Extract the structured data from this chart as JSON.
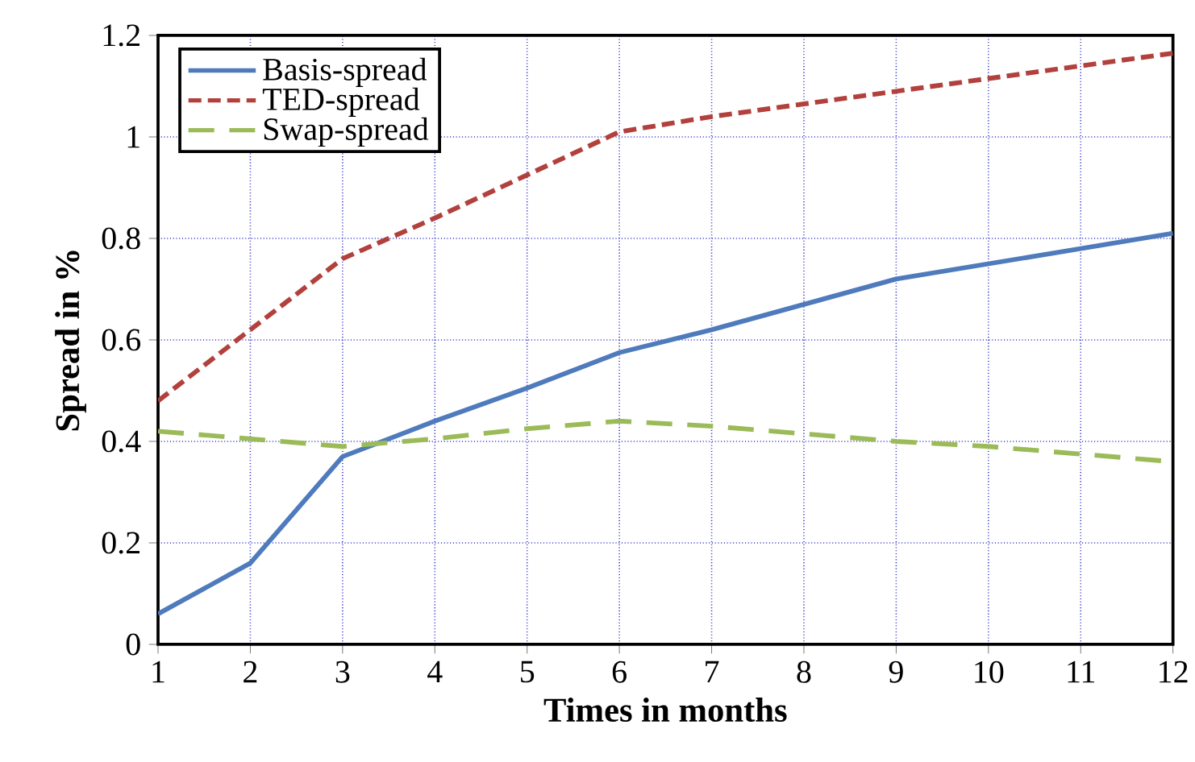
{
  "chart_data": {
    "type": "line",
    "xlabel": "Times in months",
    "ylabel": "Spread  in %",
    "x": [
      1,
      2,
      3,
      4,
      5,
      6,
      7,
      8,
      9,
      10,
      11,
      12
    ],
    "series": [
      {
        "name": "Basis-spread",
        "color": "#4f7bbd",
        "line_style": "solid",
        "values": [
          0.06,
          0.16,
          0.37,
          0.44,
          0.505,
          0.575,
          0.62,
          0.67,
          0.72,
          0.75,
          0.78,
          0.81
        ]
      },
      {
        "name": "TED-spread",
        "color": "#b2403d",
        "line_style": "dashed",
        "values": [
          0.48,
          0.62,
          0.76,
          0.84,
          0.925,
          1.01,
          1.04,
          1.065,
          1.09,
          1.115,
          1.14,
          1.165
        ]
      },
      {
        "name": "Swap-spread",
        "color": "#9bbb59",
        "line_style": "dashed",
        "values": [
          0.42,
          0.405,
          0.39,
          0.405,
          0.425,
          0.44,
          0.43,
          0.415,
          0.4,
          0.39,
          0.375,
          0.36
        ]
      }
    ],
    "xlim": [
      1,
      12
    ],
    "xticks": [
      1,
      2,
      3,
      4,
      5,
      6,
      7,
      8,
      9,
      10,
      11,
      12
    ],
    "ylim": [
      0,
      1.2
    ],
    "yticks": [
      0,
      0.2,
      0.4,
      0.6,
      0.8,
      1,
      1.2
    ],
    "grid": true,
    "legend": "top left",
    "marker": "none"
  }
}
